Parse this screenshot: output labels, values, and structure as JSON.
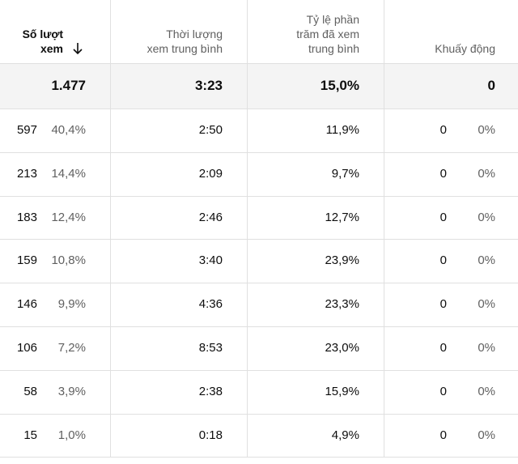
{
  "header": {
    "columns": [
      {
        "lines": [
          "Số lượt",
          "xem"
        ]
      },
      {
        "lines": [
          "Thời lượng",
          "xem trung bình"
        ]
      },
      {
        "lines": [
          "Tỷ lệ phần",
          "trăm đã xem",
          "trung bình"
        ]
      },
      {
        "lines": [
          "Khuấy động"
        ]
      }
    ]
  },
  "total": [
    "1.477",
    "3:23",
    "15,0%",
    "0"
  ],
  "rows": [
    [
      "597",
      "40,4%",
      "2:50",
      "11,9%",
      "0",
      "0%"
    ],
    [
      "213",
      "14,4%",
      "2:09",
      "9,7%",
      "0",
      "0%"
    ],
    [
      "183",
      "12,4%",
      "2:46",
      "12,7%",
      "0",
      "0%"
    ],
    [
      "159",
      "10,8%",
      "3:40",
      "23,9%",
      "0",
      "0%"
    ],
    [
      "146",
      "9,9%",
      "4:36",
      "23,3%",
      "0",
      "0%"
    ],
    [
      "106",
      "7,2%",
      "8:53",
      "23,0%",
      "0",
      "0%"
    ],
    [
      "58",
      "3,9%",
      "2:38",
      "15,9%",
      "0",
      "0%"
    ],
    [
      "15",
      "1,0%",
      "0:18",
      "4,9%",
      "0",
      "0%"
    ]
  ]
}
